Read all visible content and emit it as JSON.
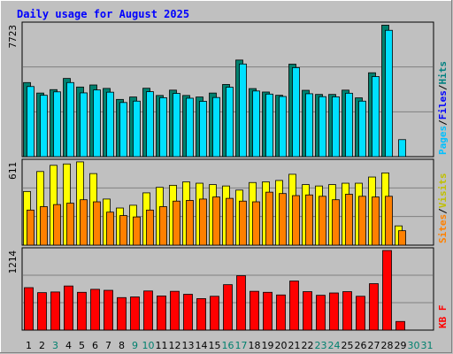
{
  "chart_data": {
    "type": "bar",
    "title": "Daily usage for August 2025",
    "title_color": "#0000ff",
    "days": [
      "1",
      "2",
      "3",
      "4",
      "5",
      "6",
      "7",
      "8",
      "9",
      "10",
      "11",
      "12",
      "13",
      "14",
      "15",
      "16",
      "17",
      "18",
      "19",
      "20",
      "21",
      "22",
      "23",
      "24",
      "25",
      "26",
      "27",
      "28",
      "29",
      "30",
      "31"
    ],
    "weekend_days": [
      "3",
      "9",
      "10",
      "16",
      "17",
      "23",
      "24",
      "30",
      "31"
    ],
    "panels": [
      {
        "name": "pages-files-hits",
        "ylabel_max": "7723",
        "ylim": [
          0,
          7723
        ],
        "legend": [
          {
            "text": "Pages",
            "color": "#00c0ff"
          },
          {
            "text": "Files",
            "color": "#0000ff"
          },
          {
            "text": "Hits",
            "color": "#008080"
          }
        ],
        "series": [
          {
            "name": "Hits",
            "color": "#00806e",
            "values": [
              4310,
              3700,
              3900,
              4550,
              4050,
              4170,
              3970,
              3330,
              3470,
              3980,
              3560,
              3870,
              3560,
              3470,
              3700,
              4200,
              5620,
              3960,
              3760,
              3570,
              5380,
              3860,
              3620,
              3620,
              3870,
              3420,
              4880,
              7650,
              0,
              0,
              0
            ]
          },
          {
            "name": "Files",
            "color": "#00e0ff",
            "values": [
              4080,
              3570,
              3770,
              4310,
              3710,
              3880,
              3750,
              3150,
              3230,
              3780,
              3430,
              3680,
              3400,
              3220,
              3440,
              4040,
              5390,
              3820,
              3640,
              3500,
              5180,
              3660,
              3490,
              3480,
              3690,
              3230,
              4660,
              7350,
              990,
              0,
              0
            ]
          }
        ]
      },
      {
        "name": "visits-sites",
        "ylabel_max": "611",
        "ylim": [
          0,
          611
        ],
        "legend": [
          {
            "text": "Sites",
            "color": "#ff8000"
          },
          {
            "text": "/",
            "color": "#000000"
          },
          {
            "text": "Visits",
            "color": "#c0c000"
          }
        ],
        "series": [
          {
            "name": "Visits",
            "color": "#ffff00",
            "values": [
              390,
              535,
              580,
              590,
              605,
              520,
              335,
              270,
              290,
              380,
              420,
              435,
              460,
              450,
              440,
              430,
              400,
              455,
              460,
              470,
              515,
              440,
              430,
              440,
              450,
              450,
              495,
              525,
              140,
              0,
              0
            ]
          },
          {
            "name": "Sites",
            "color": "#ff8000",
            "values": [
              255,
              280,
              295,
              305,
              330,
              315,
              240,
              215,
              205,
              255,
              280,
              320,
              325,
              335,
              350,
              340,
              320,
              315,
              385,
              375,
              360,
              365,
              355,
              330,
              370,
              355,
              350,
              355,
              105,
              0,
              0
            ]
          }
        ]
      },
      {
        "name": "kbytes",
        "ylabel_max": "1214",
        "ylim": [
          0,
          1214
        ],
        "legend": [
          {
            "text": "KB F",
            "color": "#ff0000"
          }
        ],
        "series": [
          {
            "name": "KB F",
            "color": "#ff0000",
            "values": [
              640,
              565,
              575,
              665,
              570,
              615,
              600,
              490,
              500,
              590,
              515,
              585,
              540,
              475,
              510,
              685,
              820,
              585,
              570,
              530,
              740,
              580,
              525,
              560,
              580,
              510,
              700,
              1200,
              130,
              0,
              0
            ]
          }
        ]
      }
    ]
  }
}
